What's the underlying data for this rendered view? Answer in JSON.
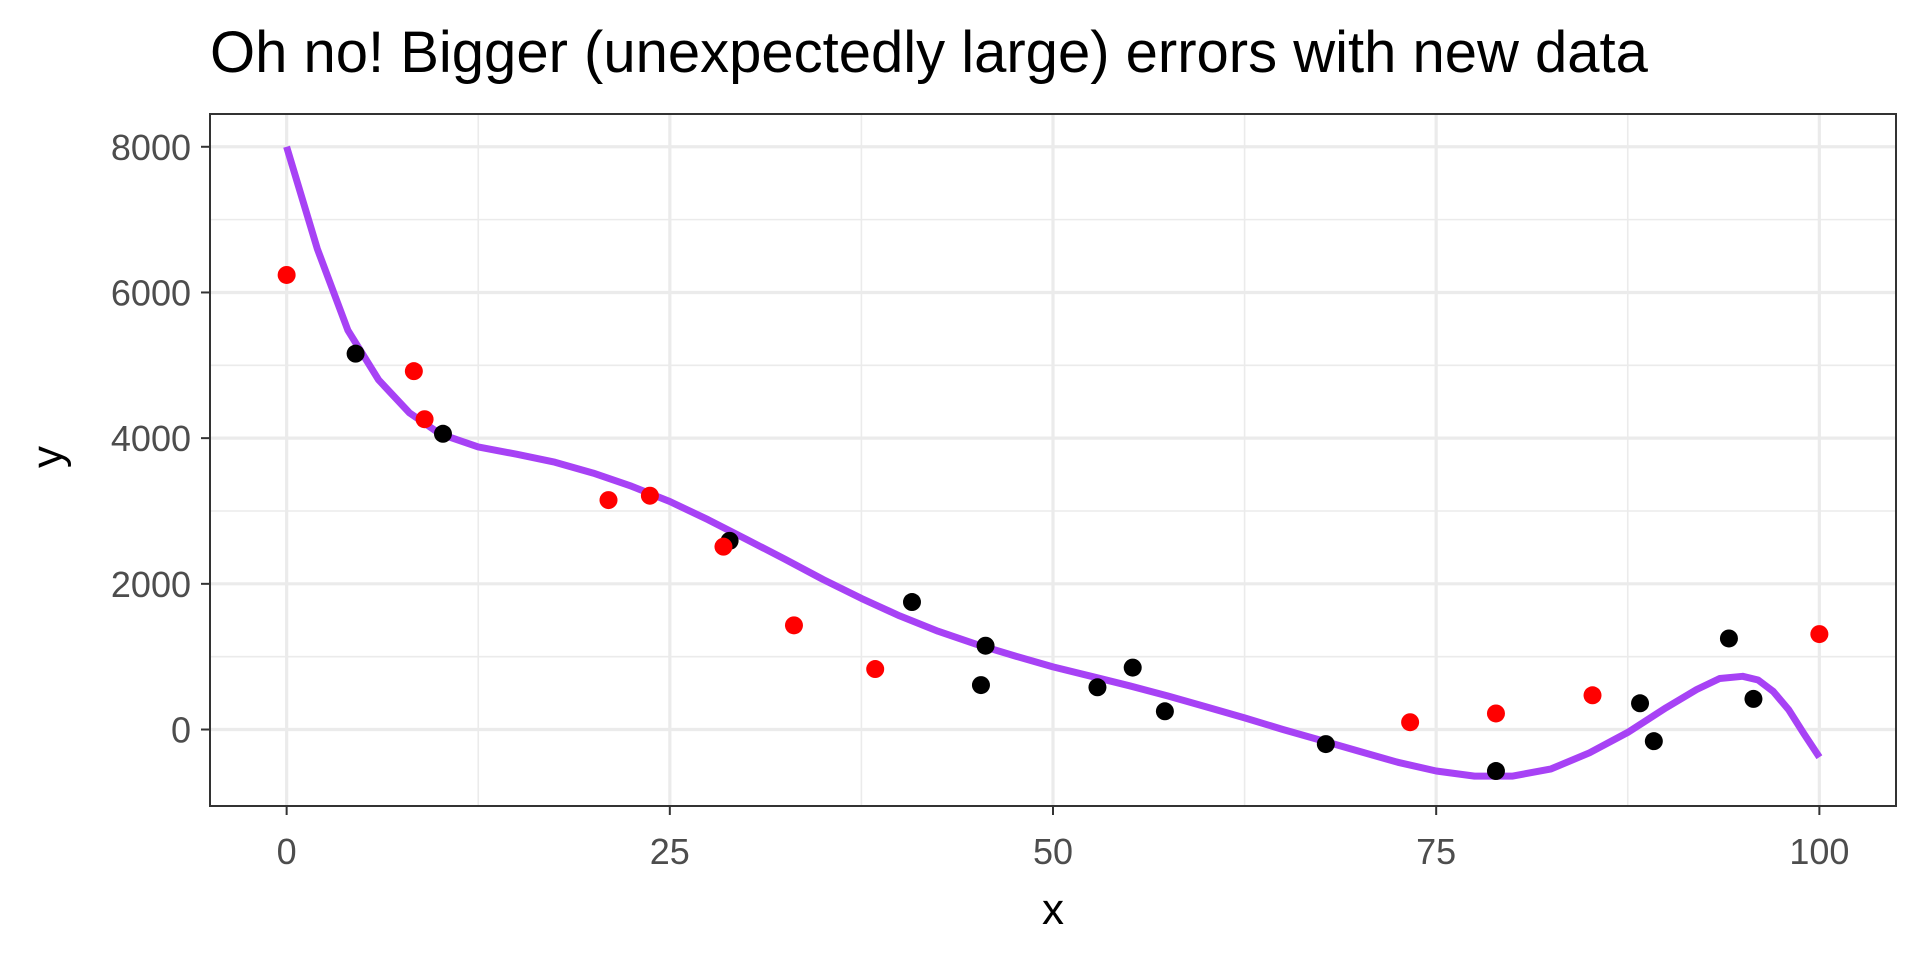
{
  "chart_data": {
    "type": "scatter",
    "title": "Oh no! Bigger (unexpectedly large) errors with new data",
    "xlabel": "x",
    "ylabel": "y",
    "xlim": [
      -5,
      105
    ],
    "ylim": [
      -1050,
      8450
    ],
    "x_ticks": [
      0,
      25,
      50,
      75,
      100
    ],
    "x_tick_labels": [
      "0",
      "25",
      "50",
      "75",
      "100"
    ],
    "y_ticks": [
      0,
      2000,
      4000,
      6000,
      8000
    ],
    "y_tick_labels": [
      "0",
      "2000",
      "4000",
      "6000",
      "8000"
    ],
    "grid": true,
    "legend": "none",
    "series": [
      {
        "color": "#000000",
        "points": [
          {
            "x": 4.5,
            "y": 5160
          },
          {
            "x": 10.2,
            "y": 4060
          },
          {
            "x": 28.9,
            "y": 2590
          },
          {
            "x": 40.8,
            "y": 1750
          },
          {
            "x": 45.6,
            "y": 1150
          },
          {
            "x": 45.3,
            "y": 610
          },
          {
            "x": 52.9,
            "y": 580
          },
          {
            "x": 55.2,
            "y": 850
          },
          {
            "x": 57.3,
            "y": 250
          },
          {
            "x": 67.8,
            "y": -200
          },
          {
            "x": 78.9,
            "y": -570
          },
          {
            "x": 88.3,
            "y": 360
          },
          {
            "x": 89.2,
            "y": -160
          },
          {
            "x": 94.1,
            "y": 1250
          },
          {
            "x": 95.7,
            "y": 420
          }
        ]
      },
      {
        "color": "#ff0000",
        "points": [
          {
            "x": 0.0,
            "y": 6240
          },
          {
            "x": 8.3,
            "y": 4920
          },
          {
            "x": 9.0,
            "y": 4260
          },
          {
            "x": 21.0,
            "y": 3150
          },
          {
            "x": 23.7,
            "y": 3210
          },
          {
            "x": 28.5,
            "y": 2510
          },
          {
            "x": 33.1,
            "y": 1430
          },
          {
            "x": 38.4,
            "y": 830
          },
          {
            "x": 73.3,
            "y": 100
          },
          {
            "x": 78.9,
            "y": 220
          },
          {
            "x": 85.2,
            "y": 470
          },
          {
            "x": 100.0,
            "y": 1310
          }
        ]
      },
      {
        "type": "line",
        "color": "#a742f5",
        "x": [
          0,
          2,
          4,
          6,
          8,
          10,
          12.5,
          15,
          17.5,
          20,
          22.5,
          25,
          27.5,
          30,
          32.5,
          35,
          37.5,
          40,
          42.5,
          45,
          47.5,
          50,
          52.5,
          55,
          57.5,
          60,
          62.5,
          65,
          67.5,
          70,
          72.5,
          75,
          77.5,
          80,
          82.5,
          85,
          87.5,
          90,
          92,
          93.5,
          95,
          96,
          97,
          98,
          99,
          100
        ],
        "y": [
          8000,
          6600,
          5480,
          4800,
          4350,
          4060,
          3880,
          3780,
          3670,
          3520,
          3340,
          3130,
          2880,
          2610,
          2340,
          2060,
          1800,
          1560,
          1350,
          1170,
          1010,
          860,
          730,
          600,
          460,
          310,
          160,
          0,
          -150,
          -300,
          -450,
          -570,
          -640,
          -640,
          -540,
          -320,
          -40,
          300,
          550,
          700,
          730,
          680,
          520,
          270,
          -60,
          -380
        ]
      }
    ]
  }
}
